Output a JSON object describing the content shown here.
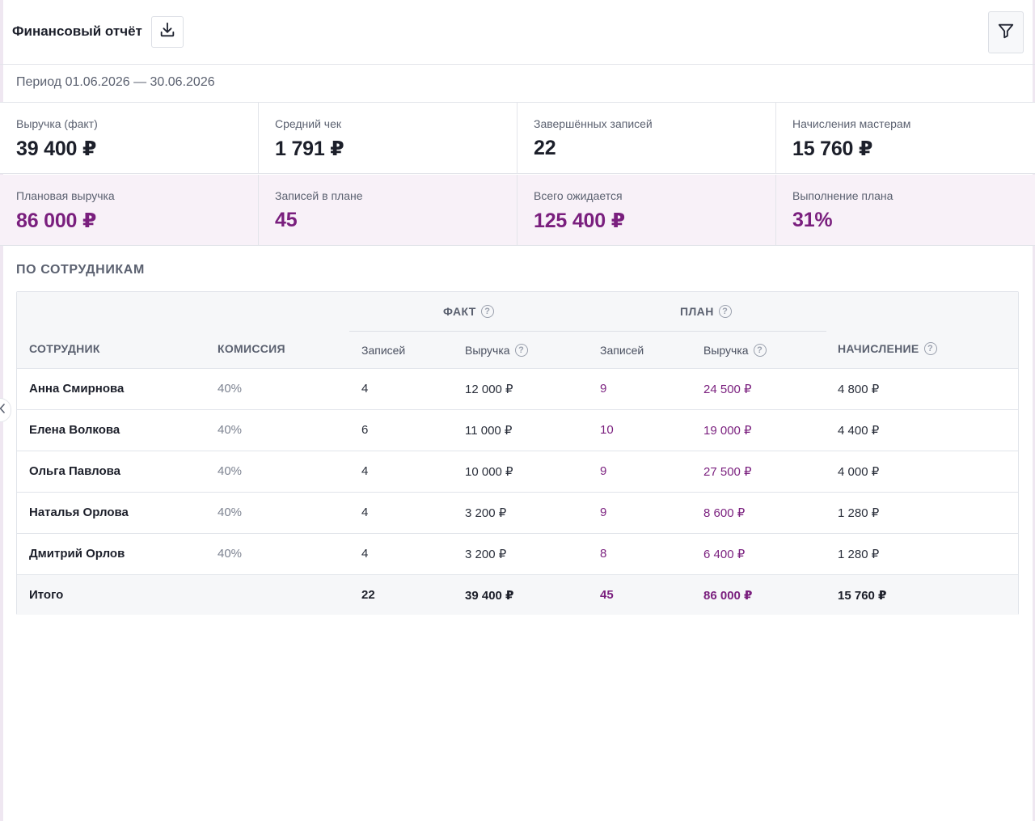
{
  "header": {
    "title": "Финансовый отчёт",
    "download_icon": "download-icon",
    "filter_icon": "filter-icon"
  },
  "period": "Период 01.06.2026 — 30.06.2026",
  "metrics_fact": [
    {
      "label": "Выручка (факт)",
      "value": "39 400 ₽"
    },
    {
      "label": "Средний чек",
      "value": "1 791 ₽"
    },
    {
      "label": "Завершённых записей",
      "value": "22"
    },
    {
      "label": "Начисления мастерам",
      "value": "15 760 ₽"
    }
  ],
  "metrics_plan": [
    {
      "label": "Плановая выручка",
      "value": "86 000 ₽"
    },
    {
      "label": "Записей в плане",
      "value": "45"
    },
    {
      "label": "Всего ожидается",
      "value": "125 400 ₽"
    },
    {
      "label": "Выполнение плана",
      "value": "31%"
    }
  ],
  "section_title": "ПО СОТРУДНИКАМ",
  "table": {
    "group_fact": "ФАКТ",
    "group_plan": "ПЛАН",
    "headers": {
      "employee": "СОТРУДНИК",
      "commission": "КОМИССИЯ",
      "fact_count": "Записей",
      "fact_revenue": "Выручка",
      "plan_count": "Записей",
      "plan_revenue": "Выручка",
      "accrual": "НАЧИСЛЕНИЕ"
    },
    "rows": [
      {
        "name": "Анна Смирнова",
        "commission": "40%",
        "fact_count": "4",
        "fact_revenue": "12 000 ₽",
        "plan_count": "9",
        "plan_revenue": "24 500 ₽",
        "accrual": "4 800 ₽"
      },
      {
        "name": "Елена Волкова",
        "commission": "40%",
        "fact_count": "6",
        "fact_revenue": "11 000 ₽",
        "plan_count": "10",
        "plan_revenue": "19 000 ₽",
        "accrual": "4 400 ₽"
      },
      {
        "name": "Ольга Павлова",
        "commission": "40%",
        "fact_count": "4",
        "fact_revenue": "10 000 ₽",
        "plan_count": "9",
        "plan_revenue": "27 500 ₽",
        "accrual": "4 000 ₽"
      },
      {
        "name": "Наталья Орлова",
        "commission": "40%",
        "fact_count": "4",
        "fact_revenue": "3 200 ₽",
        "plan_count": "9",
        "plan_revenue": "8 600 ₽",
        "accrual": "1 280 ₽"
      },
      {
        "name": "Дмитрий Орлов",
        "commission": "40%",
        "fact_count": "4",
        "fact_revenue": "3 200 ₽",
        "plan_count": "8",
        "plan_revenue": "6 400 ₽",
        "accrual": "1 280 ₽"
      }
    ],
    "total": {
      "name": "Итого",
      "fact_count": "22",
      "fact_revenue": "39 400 ₽",
      "plan_count": "45",
      "plan_revenue": "86 000 ₽",
      "accrual": "15 760 ₽"
    }
  },
  "colors": {
    "accent": "#7a1f7e",
    "plan_row_bg": "#f8f1f8",
    "header_bg": "#f6f7f9"
  }
}
